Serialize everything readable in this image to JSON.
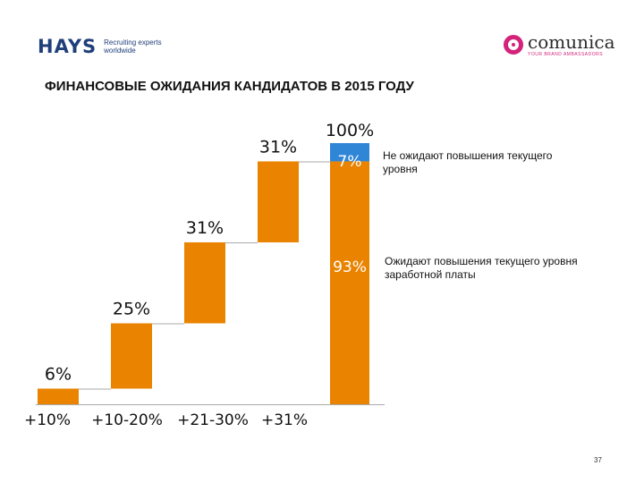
{
  "header": {
    "hays_logo": "HAYS",
    "hays_tagline": "Recruiting experts worldwide",
    "comunica_logo": "comunica",
    "comunica_tagline": "YOUR BRAND AMBASSADORS"
  },
  "title": "ФИНАНСОВЫЕ ОЖИДАНИЯ КАНДИДАТОВ В 2015 ГОДУ",
  "descriptions": {
    "top": "Не ожидают повышения текущего уровня",
    "bottom": "Ожидают повышения текущего уровня заработной платы"
  },
  "page_number": "37",
  "chart_data": {
    "type": "bar",
    "subtype": "waterfall",
    "categories": [
      "+10%",
      "+10-20%",
      "+21-30%",
      "+31%"
    ],
    "values": [
      6,
      25,
      31,
      31
    ],
    "value_labels": [
      "6%",
      "25%",
      "31%",
      "31%"
    ],
    "total": {
      "label": "100%",
      "segments": [
        {
          "name": "Ожидают повышения текущего уровня заработной платы",
          "value": 93,
          "label": "93%"
        },
        {
          "name": "Не ожидают повышения текущего уровня",
          "value": 7,
          "label": "7%"
        }
      ]
    },
    "ylim": [
      0,
      100
    ],
    "colors": {
      "bar": "#e98300",
      "segment_top": "#2f86d6",
      "axis": "#aaaaaa"
    },
    "title": "ФИНАНСОВЫЕ ОЖИДАНИЯ КАНДИДАТОВ В 2015 ГОДУ"
  }
}
